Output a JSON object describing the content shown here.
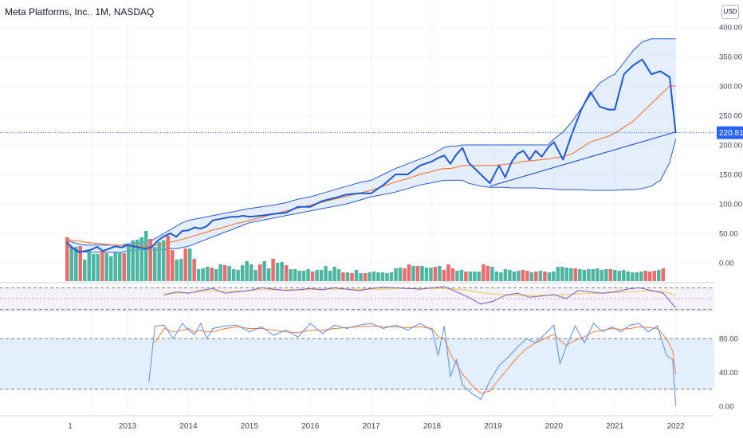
{
  "header": {
    "title": "Meta Platforms, Inc., 1M, NASDAQ",
    "currency": "USD"
  },
  "colors": {
    "price_line": "#1f58d6",
    "ma_line": "#f57c3a",
    "band_line": "#2a5bd7",
    "band_fill": "#cfe0fb",
    "vol_up": "#4db6a2",
    "vol_down": "#ef6a6a",
    "rsi_line": "#7e57c2",
    "rsi_ma": "#f2c94c",
    "stoch_k": "#5b8ee6",
    "stoch_d": "#f57c3a",
    "stoch_fill": "#e3effc",
    "price_tag": "#2962ff"
  },
  "chart_data": [
    {
      "type": "line",
      "name": "price",
      "x_ticks": [
        "1",
        "2013",
        "2014",
        "2015",
        "2016",
        "2017",
        "2018",
        "2019",
        "2020",
        "2021",
        "2022"
      ],
      "y_ticks": [
        "400.00",
        "350.00",
        "300.00",
        "250.00",
        "200.00",
        "150.00",
        "100.00",
        "50.00",
        "0.00"
      ],
      "ylim": [
        0,
        400
      ],
      "last_price": "220.81",
      "x": [
        2012.0,
        2012.1,
        2012.2,
        2012.3,
        2012.4,
        2012.5,
        2012.6,
        2012.7,
        2012.8,
        2012.9,
        2013.0,
        2013.1,
        2013.2,
        2013.3,
        2013.4,
        2013.5,
        2013.6,
        2013.7,
        2013.8,
        2013.9,
        2014.0,
        2014.1,
        2014.2,
        2014.3,
        2014.4,
        2014.5,
        2014.6,
        2014.7,
        2014.8,
        2014.9,
        2015.0,
        2015.2,
        2015.4,
        2015.6,
        2015.8,
        2016.0,
        2016.2,
        2016.4,
        2016.6,
        2016.8,
        2017.0,
        2017.2,
        2017.4,
        2017.6,
        2017.8,
        2018.0,
        2018.1,
        2018.2,
        2018.3,
        2018.4,
        2018.5,
        2018.6,
        2018.8,
        2018.95,
        2019.1,
        2019.2,
        2019.3,
        2019.4,
        2019.5,
        2019.6,
        2019.7,
        2019.8,
        2019.9,
        2020.0,
        2020.15,
        2020.3,
        2020.45,
        2020.6,
        2020.75,
        2020.9,
        2021.0,
        2021.15,
        2021.3,
        2021.45,
        2021.6,
        2021.75,
        2021.9,
        2022.0
      ],
      "y": [
        35,
        25,
        18,
        20,
        22,
        27,
        20,
        24,
        28,
        26,
        30,
        28,
        26,
        24,
        27,
        38,
        45,
        50,
        44,
        54,
        55,
        60,
        58,
        62,
        72,
        74,
        76,
        78,
        78,
        80,
        78,
        80,
        83,
        85,
        95,
        95,
        105,
        110,
        116,
        118,
        118,
        132,
        150,
        150,
        165,
        172,
        178,
        182,
        168,
        184,
        195,
        170,
        150,
        135,
        165,
        145,
        170,
        185,
        190,
        175,
        190,
        180,
        195,
        205,
        175,
        220,
        260,
        290,
        265,
        260,
        260,
        320,
        335,
        345,
        320,
        325,
        315,
        220
      ],
      "ma": [
        40,
        38,
        37,
        35,
        34,
        33,
        32,
        31,
        30,
        30,
        29,
        29,
        28,
        28,
        29,
        30,
        32,
        35,
        37,
        40,
        43,
        46,
        49,
        52,
        56,
        58,
        61,
        64,
        67,
        69,
        72,
        77,
        83,
        88,
        93,
        98,
        103,
        108,
        113,
        118,
        123,
        130,
        137,
        143,
        150,
        155,
        158,
        160,
        160,
        162,
        165,
        165,
        165,
        165,
        166,
        167,
        168,
        170,
        172,
        173,
        174,
        175,
        176,
        178,
        180,
        185,
        195,
        205,
        210,
        215,
        220,
        230,
        240,
        255,
        270,
        285,
        300,
        300
      ],
      "band_upper": [
        38,
        35,
        32,
        30,
        30,
        30,
        30,
        30,
        30,
        30,
        32,
        33,
        34,
        36,
        38,
        44,
        50,
        56,
        62,
        68,
        72,
        74,
        76,
        78,
        80,
        82,
        84,
        86,
        88,
        90,
        92,
        95,
        98,
        102,
        108,
        112,
        118,
        124,
        130,
        136,
        140,
        150,
        160,
        168,
        176,
        184,
        190,
        196,
        198,
        198,
        200,
        200,
        200,
        200,
        200,
        200,
        200,
        200,
        200,
        200,
        200,
        200,
        200,
        210,
        222,
        240,
        262,
        285,
        305,
        315,
        320,
        340,
        360,
        375,
        380,
        380,
        380,
        380
      ],
      "band_lower": [
        28,
        24,
        20,
        18,
        18,
        18,
        18,
        18,
        18,
        18,
        20,
        21,
        22,
        22,
        22,
        22,
        22,
        24,
        24,
        26,
        28,
        32,
        36,
        40,
        44,
        48,
        52,
        56,
        60,
        64,
        68,
        72,
        76,
        80,
        84,
        88,
        92,
        96,
        100,
        106,
        112,
        116,
        120,
        126,
        132,
        136,
        138,
        140,
        140,
        140,
        140,
        135,
        130,
        128,
        128,
        128,
        127,
        127,
        127,
        127,
        127,
        126,
        126,
        125,
        124,
        124,
        124,
        123,
        123,
        123,
        123,
        124,
        124,
        126,
        130,
        140,
        170,
        210
      ],
      "trendline": [
        [
          2018.95,
          130
        ],
        [
          2022.0,
          222
        ]
      ]
    },
    {
      "type": "bar",
      "name": "volume",
      "values": [
        55,
        41,
        43,
        44,
        27,
        39,
        34,
        34,
        39,
        35,
        31,
        36,
        37,
        35,
        44,
        51,
        52,
        55,
        63,
        53,
        43,
        49,
        51,
        57,
        39,
        27,
        28,
        41,
        41,
        28,
        15,
        16,
        18,
        17,
        15,
        21,
        20,
        19,
        15,
        14,
        20,
        25,
        21,
        14,
        21,
        25,
        16,
        28,
        23,
        24,
        20,
        15,
        15,
        13,
        13,
        15,
        12,
        14,
        14,
        19,
        13,
        18,
        15,
        11,
        11,
        10,
        14,
        10,
        10,
        11,
        12,
        11,
        11,
        10,
        11,
        16,
        17,
        16,
        21,
        19,
        19,
        19,
        17,
        17,
        18,
        19,
        14,
        21,
        16,
        13,
        14,
        12,
        12,
        12,
        12,
        21,
        19,
        18,
        12,
        11,
        15,
        14,
        12,
        13,
        14,
        13,
        11,
        12,
        13,
        12,
        11,
        12,
        18,
        18,
        17,
        16,
        16,
        15,
        14,
        15,
        15,
        16,
        14,
        15,
        15,
        14,
        13,
        14,
        12,
        11,
        11,
        12,
        13,
        12,
        13,
        14,
        16
      ],
      "up": [
        false,
        true,
        true,
        false,
        true,
        true,
        true,
        true,
        false,
        true,
        true,
        true,
        true,
        false,
        true,
        true,
        true,
        true,
        true,
        false,
        true,
        true,
        true,
        false,
        false,
        true,
        true,
        false,
        true,
        false,
        true,
        true,
        true,
        false,
        true,
        true,
        false,
        true,
        true,
        true,
        true,
        true,
        true,
        true,
        false,
        true,
        true,
        false,
        true,
        true,
        false,
        true,
        true,
        true,
        true,
        true,
        false,
        true,
        true,
        true,
        true,
        true,
        true,
        false,
        true,
        false,
        true,
        true,
        false,
        true,
        true,
        true,
        true,
        true,
        true,
        true,
        true,
        false,
        false,
        true,
        false,
        true,
        true,
        true,
        false,
        true,
        false,
        false,
        false,
        true,
        true,
        false,
        true,
        true,
        true,
        false,
        false,
        true,
        true,
        true,
        true,
        true,
        true,
        true,
        false,
        false,
        true,
        false,
        true,
        false,
        true,
        true,
        true,
        true,
        true,
        true,
        false,
        true,
        true,
        true,
        true,
        true,
        true,
        true,
        false,
        true,
        true,
        true,
        true,
        true,
        true,
        true,
        false,
        false,
        false,
        true,
        false
      ],
      "ylim": [
        0,
        120
      ]
    },
    {
      "type": "line",
      "name": "rsi",
      "x": [
        2013.6,
        2013.8,
        2014.0,
        2014.2,
        2014.4,
        2014.6,
        2014.8,
        2015.0,
        2015.2,
        2015.4,
        2015.6,
        2015.8,
        2016.0,
        2016.2,
        2016.4,
        2016.6,
        2016.8,
        2017.0,
        2017.2,
        2017.4,
        2017.6,
        2017.8,
        2018.0,
        2018.2,
        2018.4,
        2018.6,
        2018.8,
        2019.0,
        2019.2,
        2019.4,
        2019.6,
        2019.8,
        2020.0,
        2020.2,
        2020.4,
        2020.6,
        2020.8,
        2021.0,
        2021.2,
        2021.4,
        2021.6,
        2021.8,
        2022.0
      ],
      "y": [
        55,
        60,
        58,
        62,
        65,
        58,
        60,
        62,
        66,
        64,
        62,
        63,
        65,
        63,
        66,
        64,
        62,
        65,
        67,
        66,
        65,
        64,
        66,
        68,
        60,
        52,
        42,
        46,
        55,
        58,
        52,
        54,
        56,
        50,
        62,
        60,
        58,
        60,
        64,
        66,
        62,
        58,
        36
      ],
      "ma": [
        58,
        58,
        59,
        60,
        61,
        61,
        61,
        62,
        63,
        63,
        63,
        63,
        63,
        64,
        64,
        64,
        64,
        64,
        64,
        65,
        65,
        65,
        65,
        65,
        64,
        62,
        59,
        57,
        56,
        55,
        55,
        55,
        55,
        56,
        57,
        58,
        58,
        59,
        60,
        61,
        61,
        61,
        55
      ]
    },
    {
      "type": "line",
      "name": "stochastic",
      "y_ticks": [
        "80.00",
        "40.00",
        "0.00"
      ],
      "ylim": [
        0,
        100
      ],
      "upper_band": 80,
      "lower_band": 20,
      "x": [
        2013.35,
        2013.45,
        2013.6,
        2013.75,
        2013.9,
        2014.0,
        2014.1,
        2014.2,
        2014.3,
        2014.4,
        2014.6,
        2014.8,
        2015.0,
        2015.2,
        2015.4,
        2015.6,
        2015.8,
        2016.0,
        2016.2,
        2016.4,
        2016.6,
        2016.8,
        2017.0,
        2017.2,
        2017.4,
        2017.6,
        2017.8,
        2018.0,
        2018.1,
        2018.2,
        2018.3,
        2018.4,
        2018.5,
        2018.65,
        2018.8,
        2018.95,
        2019.1,
        2019.25,
        2019.4,
        2019.55,
        2019.7,
        2019.85,
        2020.0,
        2020.1,
        2020.2,
        2020.35,
        2020.5,
        2020.65,
        2020.8,
        2020.95,
        2021.1,
        2021.25,
        2021.4,
        2021.55,
        2021.7,
        2021.85,
        2021.95,
        2022.0
      ],
      "k": [
        28,
        95,
        96,
        80,
        98,
        90,
        85,
        98,
        80,
        92,
        95,
        96,
        88,
        94,
        84,
        90,
        82,
        98,
        86,
        96,
        92,
        96,
        98,
        92,
        96,
        90,
        98,
        90,
        60,
        95,
        35,
        55,
        25,
        15,
        8,
        30,
        48,
        58,
        70,
        80,
        75,
        85,
        96,
        50,
        70,
        95,
        75,
        98,
        88,
        94,
        88,
        96,
        98,
        88,
        95,
        60,
        55,
        0
      ],
      "d": [
        null,
        75,
        92,
        88,
        90,
        92,
        88,
        90,
        88,
        88,
        92,
        94,
        92,
        92,
        90,
        88,
        87,
        90,
        90,
        92,
        93,
        94,
        95,
        94,
        94,
        93,
        94,
        92,
        82,
        80,
        62,
        50,
        38,
        25,
        15,
        18,
        32,
        45,
        58,
        68,
        75,
        80,
        85,
        78,
        72,
        78,
        82,
        88,
        90,
        92,
        91,
        92,
        94,
        93,
        92,
        80,
        65,
        38
      ]
    }
  ]
}
